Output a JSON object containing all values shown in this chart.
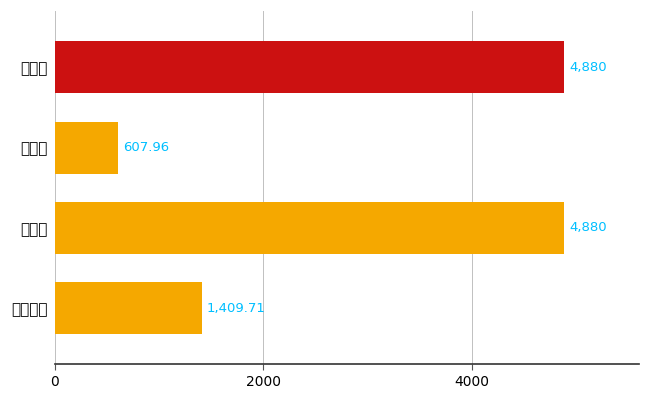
{
  "categories": [
    "徳島市",
    "県平均",
    "県最大",
    "全国平均"
  ],
  "values": [
    4880,
    607.96,
    4880,
    1409.71
  ],
  "bar_colors": [
    "#CC1111",
    "#F5A800",
    "#F5A800",
    "#F5A800"
  ],
  "value_labels": [
    "4,880",
    "607.96",
    "4,880",
    "1,409.71"
  ],
  "label_color": "#00BFFF",
  "background_color": "#FFFFFF",
  "grid_color": "#C0C0C0",
  "xlim": [
    0,
    5600
  ],
  "xticks": [
    0,
    2000,
    4000
  ],
  "bar_height": 0.65,
  "label_fontsize": 9.5,
  "tick_fontsize": 10,
  "ytick_fontsize": 11
}
